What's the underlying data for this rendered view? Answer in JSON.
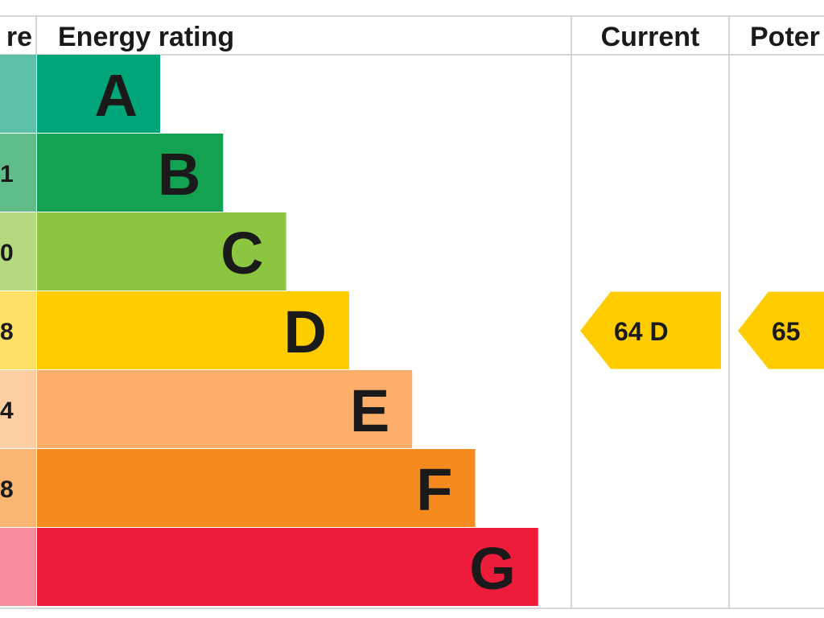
{
  "header": {
    "score_label": "re",
    "rating_label": "Energy rating",
    "current_label": "Current",
    "potential_label": "Poter"
  },
  "chart_data": {
    "type": "bar",
    "categories": [
      "A",
      "B",
      "C",
      "D",
      "E",
      "F",
      "G"
    ],
    "score_ranges": [
      "",
      "1",
      "0",
      "8",
      "4",
      "8",
      ""
    ],
    "band_colors": [
      "#00a67a",
      "#13a152",
      "#8cc540",
      "#ffcc00",
      "#fcaf6b",
      "#f58b1f",
      "#ee1c3b"
    ],
    "score_colors": [
      "#5cbfa7",
      "#60bd8a",
      "#b4d97f",
      "#ffe066",
      "#fccea2",
      "#f8b574",
      "#f68d9c"
    ],
    "band_rank": [
      1,
      2,
      3,
      4,
      5,
      6,
      7
    ],
    "current": {
      "value": 64,
      "band": "D",
      "text": "64  D"
    },
    "potential": {
      "value": 65,
      "band": "D",
      "text": "65"
    }
  }
}
